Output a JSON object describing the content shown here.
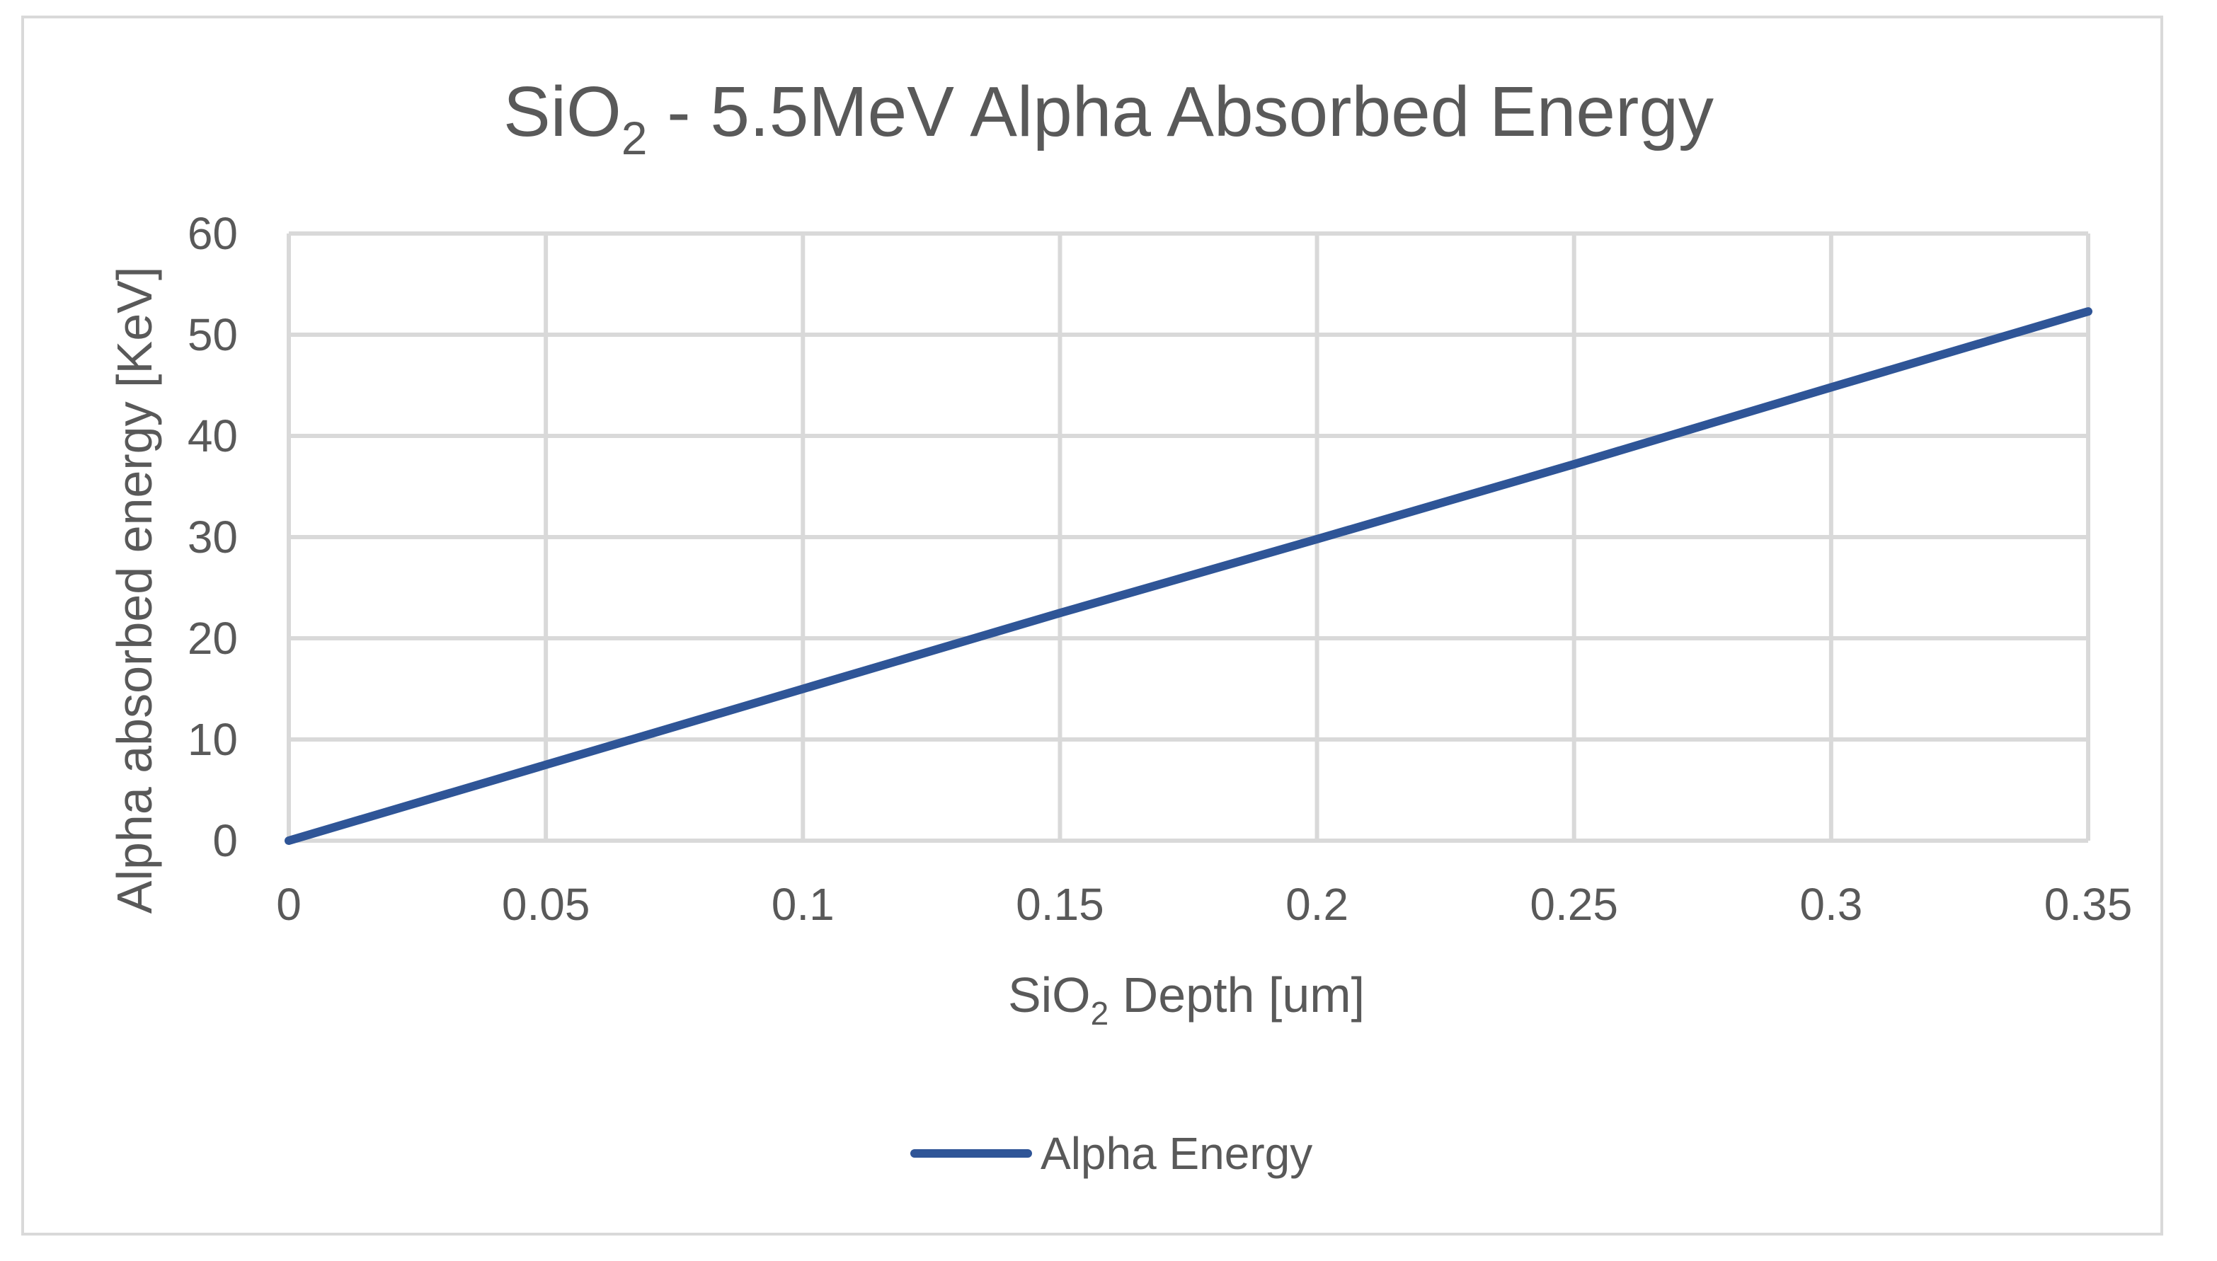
{
  "chart_data": {
    "type": "line",
    "title": "SiO",
    "title_subscript": "2",
    "title_rest": " - 5.5MeV Alpha Absorbed Energy",
    "xlabel": "SiO",
    "xlabel_subscript": "2",
    "xlabel_rest": " Depth [um]",
    "ylabel": "Alpha absorbed energy [KeV]",
    "xlim": [
      0,
      0.35
    ],
    "ylim": [
      0,
      60
    ],
    "x_ticks": [
      0,
      0.05,
      0.1,
      0.15,
      0.2,
      0.25,
      0.3,
      0.35
    ],
    "x_tick_labels": [
      "0",
      "0.05",
      "0.1",
      "0.15",
      "0.2",
      "0.25",
      "0.3",
      "0.35"
    ],
    "y_ticks": [
      0,
      10,
      20,
      30,
      40,
      50,
      60
    ],
    "y_tick_labels": [
      "0",
      "10",
      "20",
      "30",
      "40",
      "50",
      "60"
    ],
    "grid": true,
    "legend_position": "bottom",
    "series": [
      {
        "name": "Alpha Energy",
        "color": "#2f5597",
        "x": [
          0,
          0.05,
          0.1,
          0.15,
          0.2,
          0.25,
          0.3,
          0.35
        ],
        "values": [
          0,
          7.5,
          15,
          22.5,
          29.8,
          37.2,
          44.8,
          52.3
        ]
      }
    ]
  }
}
